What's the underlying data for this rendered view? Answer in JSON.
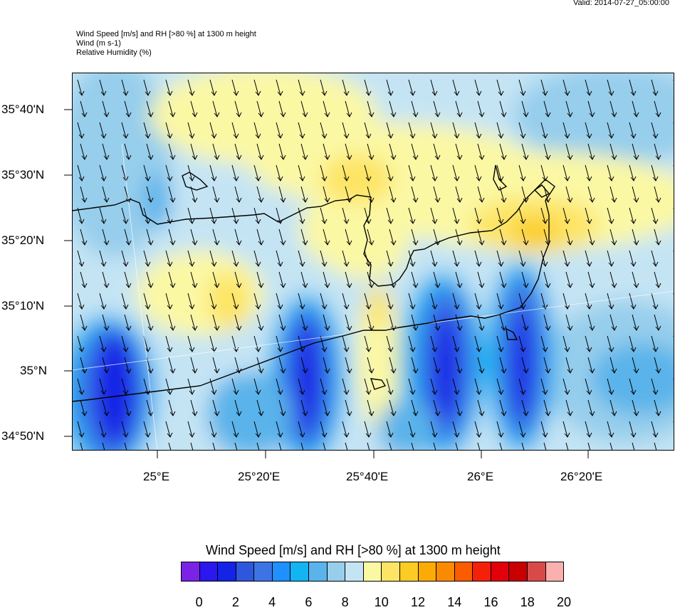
{
  "header": {
    "valid": "Valid: 2014-07-27_05:00:00",
    "lines": [
      "Wind Speed [m/s] and RH [>80 %] at 1300 m height",
      "Wind   (m s-1)",
      "Relative Humidity   (%)"
    ]
  },
  "map": {
    "lat_labels": [
      "35°40'N",
      "35°30'N",
      "35°20'N",
      "35°10'N",
      "35°N",
      "34°50'N"
    ],
    "lon_labels": [
      "25°E",
      "25°20'E",
      "25°40'E",
      "26°E",
      "26°20'E"
    ],
    "wind_direction": "north-northwest to south-southeast",
    "colors": {
      "frame": "#000000",
      "coastline": "#000000"
    }
  },
  "colorbar": {
    "title": "Wind Speed [m/s] and RH [>80 %] at 1300 m height",
    "ticks": [
      "0",
      "2",
      "4",
      "6",
      "8",
      "10",
      "12",
      "14",
      "16",
      "18",
      "20"
    ],
    "colors": [
      "#7a22e6",
      "#2c17ee",
      "#1423e6",
      "#2f57dd",
      "#3c74e6",
      "#1e90ff",
      "#12b4f2",
      "#5ab3ea",
      "#96ceec",
      "#c4e4f4",
      "#fbf8a4",
      "#fde464",
      "#fccb24",
      "#fbab05",
      "#fb8a03",
      "#fb5c00",
      "#f4200a",
      "#e2000a",
      "#c80000",
      "#d84a4a",
      "#fbb0b0"
    ]
  }
}
